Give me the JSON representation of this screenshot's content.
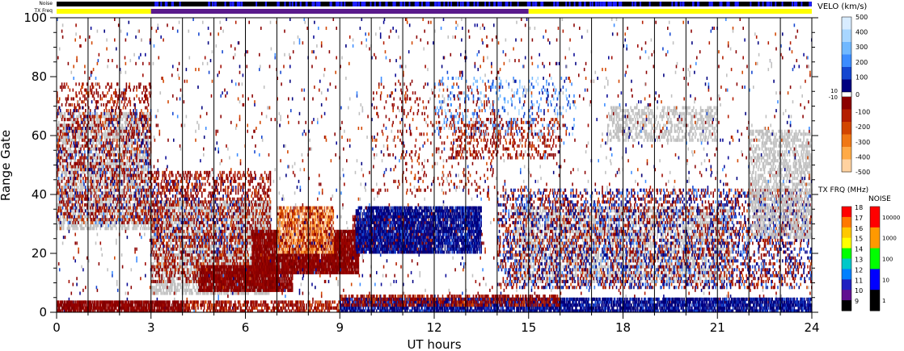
{
  "chart_data": {
    "type": "heatmap",
    "xlabel": "UT hours",
    "ylabel": "Range Gate",
    "xlim": [
      0,
      24
    ],
    "ylim": [
      0,
      100
    ],
    "x_ticks": [
      "0",
      "3",
      "6",
      "9",
      "12",
      "15",
      "18",
      "21",
      "24"
    ],
    "y_ticks": [
      "0",
      "20",
      "40",
      "60",
      "80",
      "100"
    ],
    "minor_tick_hours": 1,
    "status_bars": {
      "noise_label": "Noise",
      "txfreq_label": "TX Freq",
      "txfreq_segments": [
        {
          "start": 0,
          "end": 3,
          "color": "#ffff00"
        },
        {
          "start": 3,
          "end": 15,
          "color": "#5a1a8c"
        },
        {
          "start": 15,
          "end": 24,
          "color": "#ffff00"
        }
      ]
    },
    "velocity_scale": {
      "title": "VELO (km/s)",
      "labels": [
        "500",
        "400",
        "300",
        "200",
        "100",
        "0",
        "-100",
        "-200",
        "-300",
        "-400",
        "-500"
      ],
      "gap_labels": [
        "10",
        "-10"
      ],
      "colors": [
        "#d8ecff",
        "#a8d6ff",
        "#70b8ff",
        "#3c8cff",
        "#1446d0",
        "#000080",
        "#8b0000",
        "#b41e00",
        "#d24600",
        "#f07814",
        "#ffaa46",
        "#ffd2a0"
      ]
    },
    "txfreq_scale": {
      "title": "TX FRQ (MHz)",
      "labels": [
        "18",
        "17",
        "16",
        "15",
        "14",
        "13",
        "12",
        "11",
        "10",
        "9"
      ],
      "colors": [
        "#ff0000",
        "#ff7800",
        "#ffc800",
        "#ffff00",
        "#00ff00",
        "#00c8c8",
        "#0080ff",
        "#2020c0",
        "#601090",
        "#000000"
      ]
    },
    "noise_scale": {
      "title": "NOISE",
      "labels": [
        "10000",
        "1000",
        "100",
        "10",
        "1"
      ],
      "colors": [
        "#ff0000",
        "#ff9900",
        "#00ff00",
        "#0000ff",
        "#000000"
      ]
    },
    "ground_scatter_color": "#c0c0c0",
    "regions": [
      {
        "kind": "gs",
        "x0": 0.0,
        "x1": 3.0,
        "y0": 28,
        "y1": 68,
        "density": 0.42
      },
      {
        "kind": "neg",
        "x0": 0.0,
        "x1": 3.0,
        "y0": 30,
        "y1": 78,
        "density": 0.22
      },
      {
        "kind": "pos",
        "x0": 0.0,
        "x1": 3.0,
        "y0": 30,
        "y1": 70,
        "density": 0.05
      },
      {
        "kind": "gs",
        "x0": 3.0,
        "x1": 6.8,
        "y0": 6,
        "y1": 38,
        "density": 0.5
      },
      {
        "kind": "neg",
        "x0": 3.0,
        "x1": 6.8,
        "y0": 10,
        "y1": 48,
        "density": 0.28
      },
      {
        "kind": "strongneg",
        "x0": 4.5,
        "x1": 7.5,
        "y0": 7,
        "y1": 16,
        "density": 0.85
      },
      {
        "kind": "strongneg",
        "x0": 6.2,
        "x1": 9.6,
        "y0": 13,
        "y1": 28,
        "density": 0.9
      },
      {
        "kind": "hot",
        "x0": 7.0,
        "x1": 8.8,
        "y0": 20,
        "y1": 36,
        "density": 0.85
      },
      {
        "kind": "strongneg",
        "x0": 9.4,
        "x1": 12.0,
        "y0": 20,
        "y1": 33,
        "density": 0.55
      },
      {
        "kind": "strongpos",
        "x0": 9.5,
        "x1": 13.5,
        "y0": 20,
        "y1": 36,
        "density": 0.75
      },
      {
        "kind": "neg",
        "x0": 10.0,
        "x1": 14.0,
        "y0": 40,
        "y1": 78,
        "density": 0.05
      },
      {
        "kind": "gs",
        "x0": 14.5,
        "x1": 21.5,
        "y0": 10,
        "y1": 36,
        "density": 0.4
      },
      {
        "kind": "neg",
        "x0": 14.0,
        "x1": 24.0,
        "y0": 8,
        "y1": 42,
        "density": 0.16
      },
      {
        "kind": "pos",
        "x0": 14.0,
        "x1": 24.0,
        "y0": 8,
        "y1": 42,
        "density": 0.12
      },
      {
        "kind": "gs",
        "x0": 22.0,
        "x1": 24.0,
        "y0": 25,
        "y1": 62,
        "density": 0.4
      },
      {
        "kind": "gs",
        "x0": 17.5,
        "x1": 21.0,
        "y0": 58,
        "y1": 70,
        "density": 0.35
      },
      {
        "kind": "neg",
        "x0": 12.5,
        "x1": 16.0,
        "y0": 52,
        "y1": 66,
        "density": 0.2
      },
      {
        "kind": "lightpos",
        "x0": 12.0,
        "x1": 16.5,
        "y0": 60,
        "y1": 80,
        "density": 0.08
      },
      {
        "kind": "pos",
        "x0": 3.0,
        "x1": 6.0,
        "y0": 20,
        "y1": 45,
        "density": 0.06
      },
      {
        "kind": "neg",
        "x0": 0.0,
        "x1": 24.0,
        "y0": 0,
        "y1": 100,
        "density": 0.012
      },
      {
        "kind": "pos",
        "x0": 0.0,
        "x1": 24.0,
        "y0": 0,
        "y1": 100,
        "density": 0.008
      },
      {
        "kind": "gs",
        "x0": 0.0,
        "x1": 24.0,
        "y0": 0,
        "y1": 100,
        "density": 0.006
      },
      {
        "kind": "strongneg",
        "x0": 0.0,
        "x1": 4.0,
        "y0": 0,
        "y1": 3.5,
        "density": 0.8
      },
      {
        "kind": "neg",
        "x0": 4.0,
        "x1": 9.0,
        "y0": 0,
        "y1": 3.5,
        "density": 0.5
      },
      {
        "kind": "strongpos",
        "x0": 9.0,
        "x1": 24.0,
        "y0": 0,
        "y1": 4.5,
        "density": 0.75
      },
      {
        "kind": "neg",
        "x0": 9.0,
        "x1": 16.0,
        "y0": 2,
        "y1": 6,
        "density": 0.45
      }
    ]
  }
}
